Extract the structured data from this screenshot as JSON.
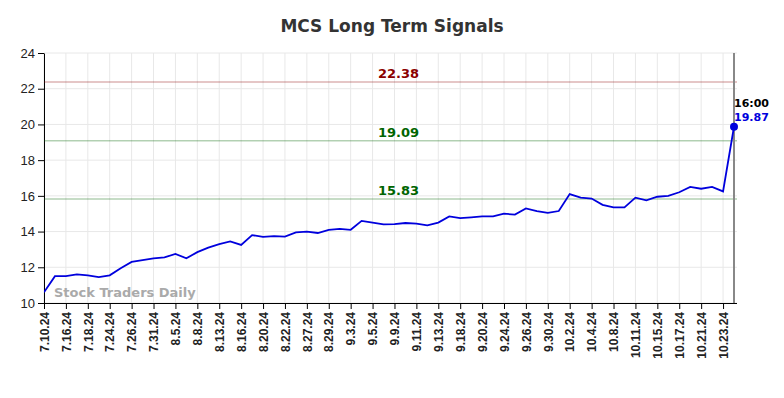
{
  "chart_data": {
    "type": "line",
    "title": "MCS Long Term Signals",
    "categories": [
      "7.10.24",
      null,
      "7.16.24",
      null,
      "7.18.24",
      null,
      "7.24.24",
      null,
      "7.26.24",
      null,
      "7.31.24",
      null,
      "8.5.24",
      null,
      "8.8.24",
      null,
      "8.13.24",
      null,
      "8.16.24",
      null,
      "8.20.24",
      null,
      "8.22.24",
      null,
      "8.27.24",
      null,
      "8.29.24",
      null,
      "9.3.24",
      null,
      "9.5.24",
      null,
      "9.9.24",
      null,
      "9.11.24",
      null,
      "9.13.24",
      null,
      "9.18.24",
      null,
      "9.20.24",
      null,
      "9.24.24",
      null,
      "9.26.24",
      null,
      "9.30.24",
      null,
      "10.2.24",
      null,
      "10.4.24",
      null,
      "10.8.24",
      null,
      "10.11.24",
      null,
      "10.15.24",
      null,
      "10.17.24",
      null,
      "10.21.24",
      null,
      "10.23.24",
      null
    ],
    "values": [
      10.6,
      11.5,
      11.5,
      11.6,
      11.55,
      11.45,
      11.55,
      11.95,
      12.3,
      12.4,
      12.5,
      12.55,
      12.75,
      12.5,
      12.85,
      13.1,
      13.3,
      13.45,
      13.25,
      13.8,
      13.7,
      13.75,
      13.72,
      13.95,
      14.0,
      13.92,
      14.1,
      14.15,
      14.1,
      14.6,
      14.5,
      14.4,
      14.42,
      14.48,
      14.45,
      14.35,
      14.5,
      14.85,
      14.75,
      14.8,
      14.85,
      14.85,
      15.0,
      14.95,
      15.3,
      15.15,
      15.05,
      15.15,
      16.1,
      15.9,
      15.85,
      15.5,
      15.35,
      15.35,
      15.9,
      15.75,
      15.95,
      16.0,
      16.2,
      16.5,
      16.4,
      16.5,
      16.25,
      19.87
    ],
    "color": "#0000dd",
    "ylim": [
      10,
      24
    ],
    "yticks": [
      10,
      12,
      14,
      16,
      18,
      20,
      22,
      24
    ],
    "grid": true,
    "reference_lines": [
      {
        "value": 22.38,
        "color": "#8b0000"
      },
      {
        "value": 19.09,
        "color": "#006400"
      },
      {
        "value": 15.83,
        "color": "#006400"
      }
    ],
    "last_time_label": "16:00",
    "watermark": "Stock Traders Daily"
  }
}
